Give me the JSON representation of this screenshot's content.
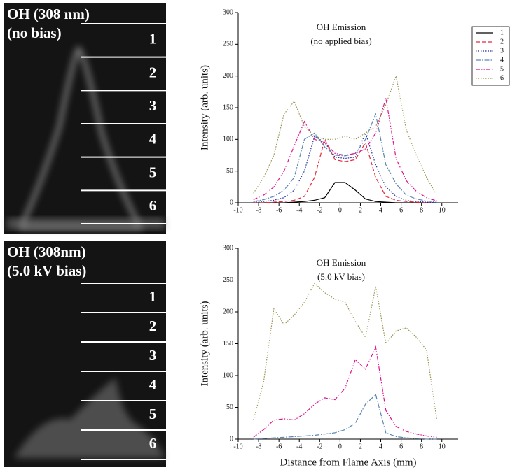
{
  "panels": [
    {
      "label_lines": [
        "OH (308 nm)",
        "(no bias)"
      ],
      "zones": [
        "1",
        "2",
        "3",
        "4",
        "5",
        "6"
      ]
    },
    {
      "label_lines": [
        "OH (308nm)",
        "(5.0 kV bias)"
      ],
      "zones": [
        "1",
        "2",
        "3",
        "4",
        "5",
        "6"
      ]
    }
  ],
  "chart_data": [
    {
      "type": "line",
      "title": "OH Emission",
      "subtitle": "(no applied bias)",
      "y_label": "Intensity (arb. units)",
      "x": [
        -8.5,
        -7.5,
        -6.5,
        -5.5,
        -4.5,
        -3.5,
        -2.5,
        -1.5,
        -0.5,
        0.5,
        1.5,
        2.5,
        3.5,
        4.5,
        5.5,
        6.5,
        7.5,
        8.5,
        9.5
      ],
      "xlim": [
        -10,
        11.6
      ],
      "xticks": [
        -10,
        -8,
        -6,
        -4,
        -2,
        0,
        2,
        4,
        6,
        8,
        10
      ],
      "ylim": [
        0,
        300
      ],
      "yticks": [
        0,
        50,
        100,
        150,
        200,
        250,
        300
      ],
      "legend": "outside-right",
      "series": [
        {
          "name": "1",
          "color": "#000000",
          "linestyle": "solid",
          "values": [
            0,
            0,
            0,
            0,
            1,
            2,
            4,
            8,
            32,
            32,
            20,
            6,
            2,
            1,
            0,
            0,
            0,
            0,
            0
          ]
        },
        {
          "name": "2",
          "color": "#e8283a",
          "linestyle": "dashed",
          "values": [
            0,
            0,
            1,
            2,
            4,
            10,
            40,
            100,
            68,
            65,
            68,
            95,
            40,
            10,
            4,
            2,
            1,
            0,
            0
          ]
        },
        {
          "name": "3",
          "color": "#1a2fa0",
          "linestyle": "dotted",
          "values": [
            1,
            2,
            4,
            8,
            20,
            50,
            105,
            95,
            72,
            70,
            72,
            110,
            60,
            25,
            10,
            4,
            2,
            1,
            0
          ]
        },
        {
          "name": "4",
          "color": "#5b86b0",
          "linestyle": "dashdot",
          "values": [
            2,
            5,
            10,
            20,
            40,
            100,
            110,
            88,
            75,
            74,
            78,
            100,
            140,
            60,
            30,
            12,
            6,
            3,
            1
          ]
        },
        {
          "name": "5",
          "color": "#e0138c",
          "linestyle": "dashdotdot",
          "values": [
            5,
            12,
            25,
            50,
            90,
            128,
            100,
            95,
            78,
            75,
            78,
            85,
            110,
            165,
            70,
            35,
            18,
            8,
            3
          ]
        },
        {
          "name": "6",
          "color": "#9a9450",
          "linestyle": "dotted",
          "values": [
            15,
            40,
            75,
            140,
            160,
            120,
            105,
            100,
            100,
            105,
            100,
            110,
            120,
            155,
            200,
            115,
            75,
            40,
            12
          ]
        }
      ]
    },
    {
      "type": "line",
      "title": "OH Emission",
      "subtitle": "(5.0 kV bias)",
      "y_label": "Intensity (arb. units)",
      "x_label": "Distance from Flame Axis (mm)",
      "x": [
        -8.5,
        -7.5,
        -6.5,
        -5.5,
        -4.5,
        -3.5,
        -2.5,
        -1.5,
        -0.5,
        0.5,
        1.5,
        2.5,
        3.5,
        4.5,
        5.5,
        6.5,
        7.5,
        8.5,
        9.5
      ],
      "xlim": [
        -10,
        11.6
      ],
      "xticks": [
        -10,
        -8,
        -6,
        -4,
        -2,
        0,
        2,
        4,
        6,
        8,
        10
      ],
      "ylim": [
        0,
        300
      ],
      "yticks": [
        0,
        50,
        100,
        150,
        200,
        250,
        300
      ],
      "series": [
        {
          "color": "#5b86b0",
          "linestyle": "dashdot",
          "values": [
            0,
            1,
            2,
            3,
            4,
            5,
            6,
            8,
            10,
            15,
            25,
            55,
            70,
            10,
            4,
            2,
            1,
            0,
            0
          ]
        },
        {
          "color": "#e0138c",
          "linestyle": "dashdotdot",
          "values": [
            3,
            15,
            30,
            32,
            30,
            40,
            55,
            65,
            62,
            80,
            125,
            110,
            145,
            45,
            20,
            12,
            8,
            5,
            3
          ]
        },
        {
          "color": "#9a9450",
          "linestyle": "dotted",
          "values": [
            30,
            90,
            205,
            180,
            195,
            215,
            245,
            230,
            220,
            215,
            185,
            160,
            240,
            150,
            170,
            175,
            160,
            140,
            30
          ]
        }
      ]
    }
  ]
}
